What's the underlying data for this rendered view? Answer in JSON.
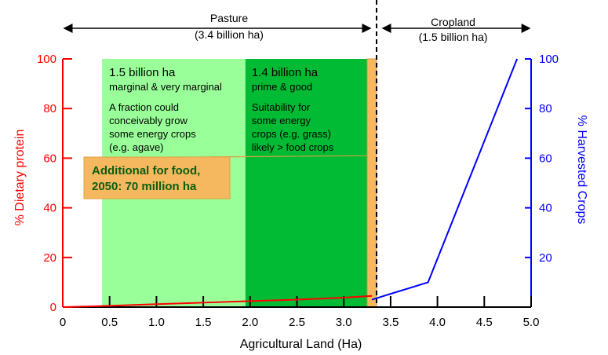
{
  "chart_data": {
    "type": "line",
    "title": "",
    "xlabel": "Agricultural Land (Ha)",
    "ylabel_left": "% Dietary protein",
    "ylabel_right": "% Harvested Crops",
    "xlim": [
      0,
      5.0
    ],
    "ylim_left": [
      0,
      100
    ],
    "ylim_right": [
      0,
      100
    ],
    "x_ticks": [
      "0",
      "0.5",
      "1.0",
      "1.5",
      "2.0",
      "2.5",
      "3.0",
      "3.5",
      "4.0",
      "4.5",
      "5.0"
    ],
    "y_ticks_left": [
      "0",
      "20",
      "40",
      "60",
      "80",
      "100"
    ],
    "y_ticks_right": [
      "20",
      "40",
      "60",
      "80",
      "100"
    ],
    "grid": false,
    "colors": {
      "left_axis": "#ff0000",
      "right_axis": "#0000ff",
      "marginal_band": "#99ff99",
      "prime_band": "#00bb33",
      "food_band": "#f5b85f",
      "divider": "#000000"
    },
    "series": [
      {
        "axis": "left",
        "color": "#ff0000",
        "x": [
          0,
          0.5,
          1.0,
          1.5,
          2.0,
          2.5,
          3.0,
          3.3
        ],
        "y": [
          0,
          0.5,
          1.2,
          1.8,
          2.4,
          3.0,
          3.8,
          4.5
        ]
      },
      {
        "axis": "right",
        "color": "#0000ff",
        "x": [
          3.3,
          3.9,
          4.85
        ],
        "y": [
          3,
          10,
          100
        ]
      }
    ],
    "regions": [
      {
        "id": "marginal",
        "x_range": [
          0.42,
          1.95
        ],
        "title": "1.5 billion ha",
        "subtitle": "marginal & very marginal",
        "text": [
          "A fraction could",
          "conceivably grow",
          "some energy crops",
          "(e.g. agave)"
        ]
      },
      {
        "id": "prime",
        "x_range": [
          1.95,
          3.25
        ],
        "title": "1.4 billion ha",
        "subtitle": "prime & good",
        "text": [
          "Suitability for",
          "some energy",
          "crops (e.g. grass)",
          "likely > food crops"
        ]
      },
      {
        "id": "food",
        "x_range": [
          3.25,
          3.35
        ]
      }
    ],
    "divider_x": 3.35,
    "spans": [
      {
        "label": "Pasture",
        "sublabel": "(3.4 billion ha)",
        "x_range": [
          0,
          3.35
        ]
      },
      {
        "label": "Cropland",
        "sublabel": "(1.5 billion ha)",
        "x_range": [
          3.35,
          4.8
        ]
      }
    ],
    "callout": {
      "lines": [
        "Additional for food,",
        "2050: 70 million ha"
      ],
      "target_x": 3.25,
      "target_y": 61
    }
  }
}
